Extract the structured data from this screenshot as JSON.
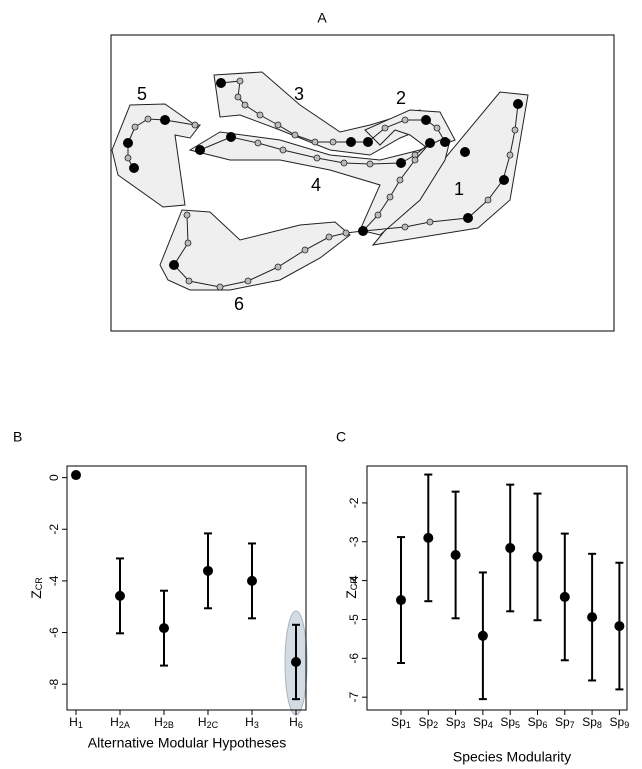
{
  "panel_a": {
    "title": "A",
    "labels": [
      "1",
      "2",
      "3",
      "4",
      "5",
      "6"
    ]
  },
  "chart_data": [
    {
      "type": "errorbar",
      "title": "B",
      "xlabel": "Alternative  Modular  Hypotheses",
      "ylabel": "ZCR",
      "categories": [
        "H1",
        "H2A",
        "H2B",
        "H2C",
        "H3",
        "H6"
      ],
      "values": [
        0.1,
        -4.58,
        -5.83,
        -3.61,
        -4.0,
        -7.14
      ],
      "errors": [
        null,
        1.45,
        1.45,
        1.45,
        1.45,
        1.44
      ],
      "color": "#000000",
      "ylim": [
        -9.0,
        0.45
      ],
      "yticks": [
        0,
        -2,
        -4,
        -6,
        -8
      ]
    },
    {
      "type": "errorbar",
      "title": "C",
      "xlabel": "Species Modularity",
      "ylabel": "ZCR",
      "categories": [
        "Sp1",
        "Sp2",
        "Sp3",
        "Sp4",
        "Sp5",
        "Sp6",
        "Sp7",
        "Sp8",
        "Sp9"
      ],
      "values": [
        -4.5,
        -2.9,
        -3.34,
        -5.42,
        -3.16,
        -3.39,
        -4.42,
        -4.94,
        -5.17
      ],
      "errors": [
        1.62,
        1.63,
        1.63,
        1.63,
        1.63,
        1.63,
        1.63,
        1.63,
        1.63
      ],
      "color": "#000000",
      "ylim": [
        -7.33,
        -1.05
      ],
      "yticks": [
        -2,
        -3,
        -4,
        -5,
        -6,
        -7
      ]
    }
  ]
}
